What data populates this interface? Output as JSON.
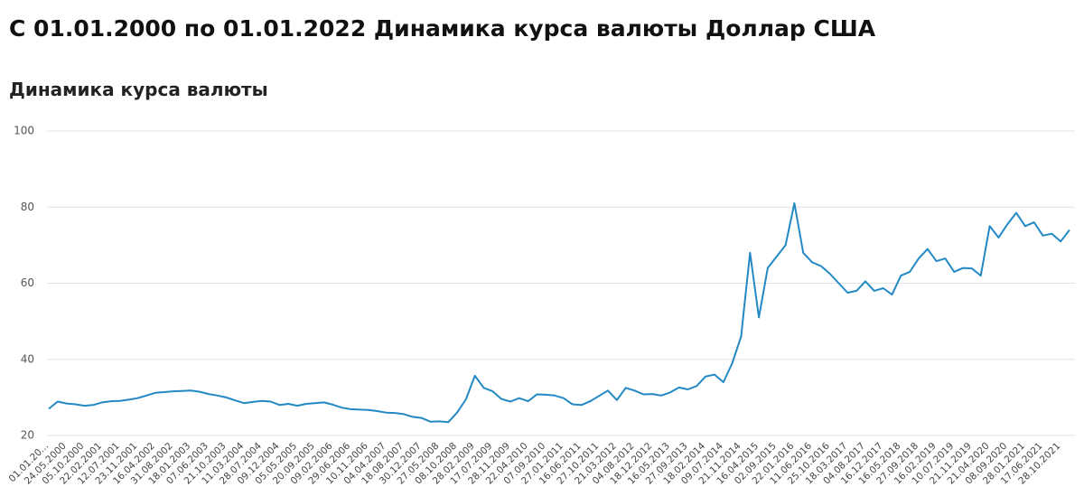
{
  "chart_data": {
    "type": "line",
    "title": "С 01.01.2000 по 01.01.2022 Динамика курса валюты Доллар США",
    "subtitle": "Динамика курса валюты",
    "categories": [
      "01.01.20...",
      null,
      "24.05.2000",
      null,
      "05.10.2000",
      null,
      "22.02.2001",
      null,
      "12.07.2001",
      null,
      "23.11.2001",
      null,
      "16.04.2002",
      null,
      "31.08.2002",
      null,
      "18.01.2003",
      null,
      "07.06.2003",
      null,
      "21.10.2003",
      null,
      "11.03.2004",
      null,
      "28.07.2004",
      null,
      "09.12.2004",
      null,
      "05.05.2005",
      null,
      "20.09.2005",
      null,
      "09.02.2006",
      null,
      "29.06.2006",
      null,
      "10.11.2006",
      null,
      "04.04.2007",
      null,
      "18.08.2007",
      null,
      "30.12.2007",
      null,
      "27.05.2008",
      null,
      "08.10.2008",
      null,
      "28.02.2009",
      null,
      "17.07.2009",
      null,
      "28.11.2009",
      null,
      "22.04.2010",
      null,
      "07.09.2010",
      null,
      "27.01.2011",
      null,
      "16.06.2011",
      null,
      "27.10.2011",
      null,
      "21.03.2012",
      null,
      "04.08.2012",
      null,
      "18.12.2012",
      null,
      "16.05.2013",
      null,
      "27.09.2013",
      null,
      "18.02.2014",
      null,
      "09.07.2014",
      null,
      "21.11.2014",
      null,
      "16.04.2015",
      null,
      "02.09.2015",
      null,
      "22.01.2016",
      null,
      "11.06.2016",
      null,
      "25.10.2016",
      null,
      "18.03.2017",
      null,
      "04.08.2017",
      null,
      "16.12.2017",
      null,
      "16.05.2018",
      null,
      "27.09.2018",
      null,
      "16.02.2019",
      null,
      "10.07.2019",
      null,
      "21.11.2019",
      null,
      "21.04.2020",
      null,
      "08.09.2020",
      null,
      "28.01.2021",
      null,
      "17.06.2021",
      null,
      "28.10.2021",
      null
    ],
    "values": [
      27.0,
      28.9,
      28.4,
      28.2,
      27.8,
      28.0,
      28.7,
      29.0,
      29.1,
      29.4,
      29.8,
      30.5,
      31.2,
      31.4,
      31.6,
      31.7,
      31.8,
      31.5,
      30.9,
      30.5,
      30.0,
      29.2,
      28.5,
      28.8,
      29.1,
      28.9,
      28.0,
      28.3,
      27.8,
      28.3,
      28.5,
      28.7,
      28.1,
      27.3,
      26.9,
      26.8,
      26.7,
      26.4,
      26.0,
      25.9,
      25.6,
      24.9,
      24.6,
      23.6,
      23.7,
      23.5,
      26.0,
      29.5,
      35.7,
      32.5,
      31.6,
      29.6,
      28.9,
      29.8,
      29.0,
      30.8,
      30.7,
      30.5,
      29.8,
      28.2,
      28.0,
      29.0,
      30.4,
      31.8,
      29.3,
      32.5,
      31.8,
      30.8,
      30.9,
      30.5,
      31.3,
      32.6,
      32.1,
      33.0,
      35.5,
      36.0,
      34.0,
      39.0,
      46.0,
      68.0,
      51.0,
      64.0,
      67.0,
      70.0,
      81.0,
      68.0,
      65.5,
      64.5,
      62.5,
      60.0,
      57.5,
      58.0,
      60.5,
      58.0,
      58.7,
      57.0,
      62.0,
      63.0,
      66.5,
      69.0,
      65.8,
      66.5,
      63.0,
      64.0,
      63.9,
      62.0,
      75.0,
      72.0,
      75.5,
      78.5,
      75.0,
      76.0,
      72.5,
      73.0,
      71.0,
      74.0
    ],
    "color": "#2389c4",
    "ylim": [
      20,
      100
    ],
    "yticks": [
      20,
      40,
      60,
      80,
      100
    ],
    "grid": true
  }
}
